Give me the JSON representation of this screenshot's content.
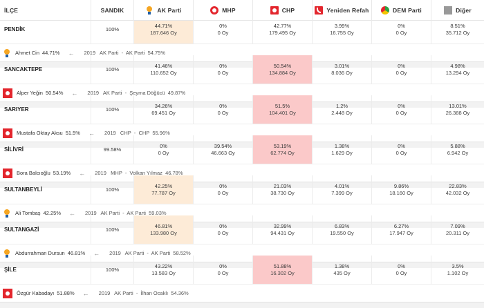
{
  "header": {
    "ilce": "İLÇE",
    "sandik": "SANDIK",
    "parties": [
      {
        "label": "AK Parti",
        "icon": "ak-parti-logo-icon"
      },
      {
        "label": "MHP",
        "icon": "mhp-logo-icon"
      },
      {
        "label": "CHP",
        "icon": "chp-logo-icon"
      },
      {
        "label": "Yeniden Refah",
        "icon": "yeniden-refah-logo-icon"
      },
      {
        "label": "DEM Parti",
        "icon": "dem-parti-logo-icon"
      },
      {
        "label": "Diğer",
        "icon": "diger-square-icon"
      }
    ]
  },
  "colors": {
    "ak_highlight": "#fdebd7",
    "chp_highlight": "#fbc9c9",
    "chp_red": "#e3262d",
    "ak_orange": "#f5a623"
  },
  "districts": [
    {
      "name": "PENDİK",
      "sandik": "100%",
      "cells": [
        {
          "pct": "44.71%",
          "votes": "187.646 Oy"
        },
        {
          "pct": "0%",
          "votes": "0 Oy"
        },
        {
          "pct": "42.77%",
          "votes": "179.495 Oy"
        },
        {
          "pct": "3.99%",
          "votes": "16.755 Oy"
        },
        {
          "pct": "0%",
          "votes": "0 Oy"
        },
        {
          "pct": "8.51%",
          "votes": "35.712 Oy"
        }
      ],
      "winner": {
        "party": "ak",
        "name": "Ahmet Cin",
        "pct": "44.71%",
        "prev": "2019   AK Parti  -  AK Parti  54.75%"
      }
    },
    {
      "name": "SANCAKTEPE",
      "sandik": "100%",
      "cells": [
        {
          "pct": "41.46%",
          "votes": "110.652 Oy"
        },
        {
          "pct": "0%",
          "votes": "0 Oy"
        },
        {
          "pct": "50.54%",
          "votes": "134.884 Oy"
        },
        {
          "pct": "3.01%",
          "votes": "8.036 Oy"
        },
        {
          "pct": "0%",
          "votes": "0 Oy"
        },
        {
          "pct": "4.98%",
          "votes": "13.294 Oy"
        }
      ],
      "winner": {
        "party": "chp",
        "name": "Alper Yeğin",
        "pct": "50.54%",
        "prev": "2019   AK Parti  -  Şeyma Döğücü  49.87%"
      }
    },
    {
      "name": "SARIYER",
      "sandik": "100%",
      "cells": [
        {
          "pct": "34.26%",
          "votes": "69.451 Oy"
        },
        {
          "pct": "0%",
          "votes": "0 Oy"
        },
        {
          "pct": "51.5%",
          "votes": "104.401 Oy"
        },
        {
          "pct": "1.2%",
          "votes": "2.448 Oy"
        },
        {
          "pct": "0%",
          "votes": "0 Oy"
        },
        {
          "pct": "13.01%",
          "votes": "26.388 Oy"
        }
      ],
      "winner": {
        "party": "chp",
        "name": "Mustafa Oktay Aksu",
        "pct": "51.5%",
        "prev": "2019   CHP  -  CHP  55.96%"
      }
    },
    {
      "name": "SİLİVRİ",
      "sandik": "99.58%",
      "cells": [
        {
          "pct": "0%",
          "votes": "0 Oy"
        },
        {
          "pct": "39.54%",
          "votes": "46.663 Oy"
        },
        {
          "pct": "53.19%",
          "votes": "62.774 Oy"
        },
        {
          "pct": "1.38%",
          "votes": "1.629 Oy"
        },
        {
          "pct": "0%",
          "votes": "0 Oy"
        },
        {
          "pct": "5.88%",
          "votes": "6.942 Oy"
        }
      ],
      "winner": {
        "party": "chp",
        "name": "Bora Balcıoğlu",
        "pct": "53.19%",
        "prev": "2019   MHP  -  Volkan Yılmaz  46.78%"
      }
    },
    {
      "name": "SULTANBEYLİ",
      "sandik": "100%",
      "cells": [
        {
          "pct": "42.25%",
          "votes": "77.787 Oy"
        },
        {
          "pct": "0%",
          "votes": "0 Oy"
        },
        {
          "pct": "21.03%",
          "votes": "38.730 Oy"
        },
        {
          "pct": "4.01%",
          "votes": "7.399 Oy"
        },
        {
          "pct": "9.86%",
          "votes": "18.160 Oy"
        },
        {
          "pct": "22.83%",
          "votes": "42.032 Oy"
        }
      ],
      "winner": {
        "party": "ak",
        "name": "Ali Tombaş",
        "pct": "42.25%",
        "prev": "2019   AK Parti  -  AK Parti  59.03%"
      }
    },
    {
      "name": "SULTANGAZİ",
      "sandik": "100%",
      "cells": [
        {
          "pct": "46.81%",
          "votes": "133.980 Oy"
        },
        {
          "pct": "0%",
          "votes": "0 Oy"
        },
        {
          "pct": "32.99%",
          "votes": "94.431 Oy"
        },
        {
          "pct": "6.83%",
          "votes": "19.550 Oy"
        },
        {
          "pct": "6.27%",
          "votes": "17.947 Oy"
        },
        {
          "pct": "7.09%",
          "votes": "20.311 Oy"
        }
      ],
      "winner": {
        "party": "ak",
        "name": "Abdurrahman Dursun",
        "pct": "46.81%",
        "prev": "2019   AK Parti  -  AK Parti  58.52%"
      }
    },
    {
      "name": "ŞİLE",
      "sandik": "100%",
      "cells": [
        {
          "pct": "43.22%",
          "votes": "13.583 Oy"
        },
        {
          "pct": "0%",
          "votes": "0 Oy"
        },
        {
          "pct": "51.88%",
          "votes": "16.302 Oy"
        },
        {
          "pct": "1.38%",
          "votes": "435 Oy"
        },
        {
          "pct": "0%",
          "votes": "0 Oy"
        },
        {
          "pct": "3.5%",
          "votes": "1.102 Oy"
        }
      ],
      "winner": {
        "party": "chp",
        "name": "Özgür Kabadayı",
        "pct": "51.88%",
        "prev": "2019   AK Parti  -  İlhan Ocaklı  54.36%"
      }
    }
  ]
}
